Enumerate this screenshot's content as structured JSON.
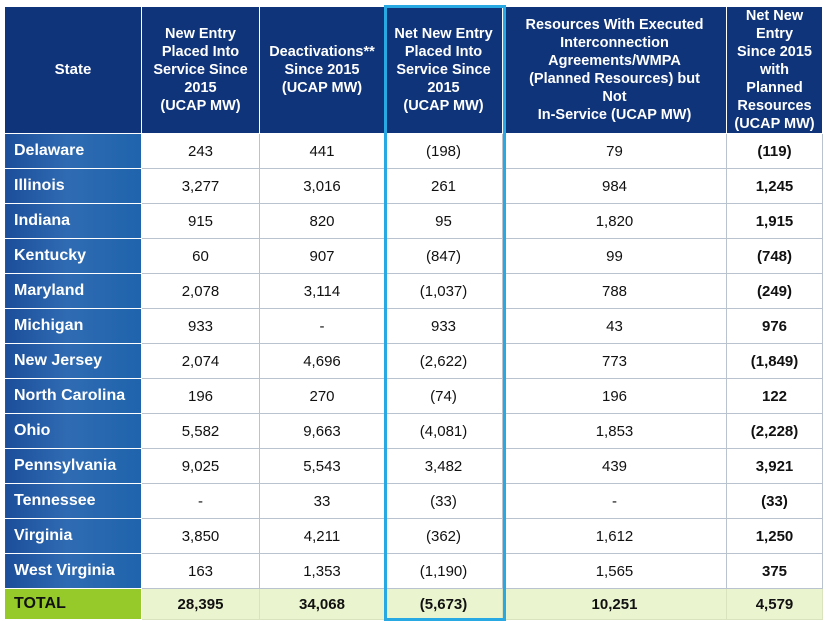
{
  "table": {
    "headers": [
      "State",
      "New Entry\nPlaced Into\nService Since\n2015\n(UCAP MW)",
      "Deactivations**\nSince 2015\n(UCAP MW)",
      "Net New Entry\nPlaced Into\nService Since\n2015\n(UCAP MW)",
      "Resources With Executed\nInterconnection\nAgreements/WMPA\n(Planned Resources) but\nNot\nIn-Service (UCAP MW)",
      "Net New Entry\nSince 2015 with\nPlanned\nResources\n(UCAP MW)"
    ],
    "rows": [
      [
        "Delaware",
        "243",
        "441",
        "(198)",
        "79",
        "(119)"
      ],
      [
        "Illinois",
        "3,277",
        "3,016",
        "261",
        "984",
        "1,245"
      ],
      [
        "Indiana",
        "915",
        "820",
        "95",
        "1,820",
        "1,915"
      ],
      [
        "Kentucky",
        "60",
        "907",
        "(847)",
        "99",
        "(748)"
      ],
      [
        "Maryland",
        "2,078",
        "3,114",
        "(1,037)",
        "788",
        "(249)"
      ],
      [
        "Michigan",
        "933",
        "-",
        "933",
        "43",
        "976"
      ],
      [
        "New Jersey",
        "2,074",
        "4,696",
        "(2,622)",
        "773",
        "(1,849)"
      ],
      [
        "North Carolina",
        "196",
        "270",
        "(74)",
        "196",
        "122"
      ],
      [
        "Ohio",
        "5,582",
        "9,663",
        "(4,081)",
        "1,853",
        "(2,228)"
      ],
      [
        "Pennsylvania",
        "9,025",
        "5,543",
        "3,482",
        "439",
        "3,921"
      ],
      [
        "Tennessee",
        "-",
        "33",
        "(33)",
        "-",
        "(33)"
      ],
      [
        "Virginia",
        "3,850",
        "4,211",
        "(362)",
        "1,612",
        "1,250"
      ],
      [
        "West Virginia",
        "163",
        "1,353",
        "(1,190)",
        "1,565",
        "375"
      ]
    ],
    "total": [
      "TOTAL",
      "28,395",
      "34,068",
      "(5,673)",
      "10,251",
      "4,579"
    ]
  },
  "colors": {
    "header_bg": "#10347a",
    "state_bg": "#1f5fa9",
    "total_label_bg": "#96c92a",
    "total_row_bg": "#eaf5cf",
    "highlight_border": "#28a9e3"
  }
}
